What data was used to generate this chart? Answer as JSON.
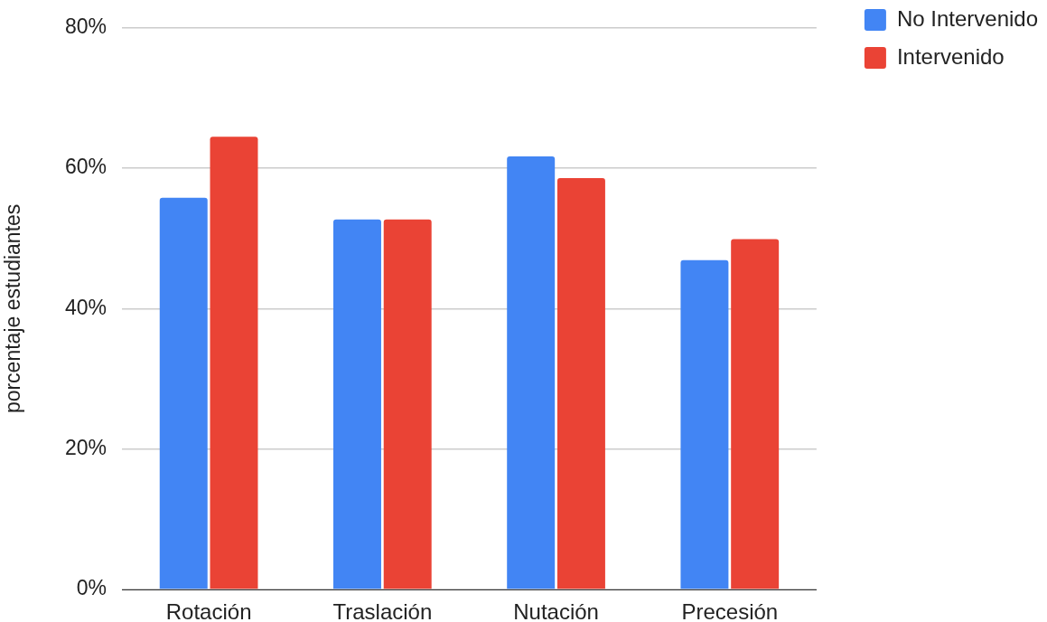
{
  "chart_data": {
    "type": "bar",
    "categories": [
      "Rotación",
      "Traslación",
      "Nutación",
      "Precesión"
    ],
    "series": [
      {
        "name": "No Intervenido",
        "color": "#4285f4",
        "values": [
          55.8,
          52.7,
          61.7,
          46.9
        ]
      },
      {
        "name": "Intervenido",
        "color": "#ea4335",
        "values": [
          64.5,
          52.7,
          58.6,
          49.9
        ]
      }
    ],
    "ylabel": "porcentaje estudiantes",
    "ylim": [
      0,
      80
    ],
    "yticks": [
      {
        "value": 0,
        "label": "0%"
      },
      {
        "value": 20,
        "label": "20%"
      },
      {
        "value": 40,
        "label": "40%"
      },
      {
        "value": 60,
        "label": "60%"
      },
      {
        "value": 80,
        "label": "80%"
      }
    ],
    "grid": "y",
    "legend": "top right"
  }
}
